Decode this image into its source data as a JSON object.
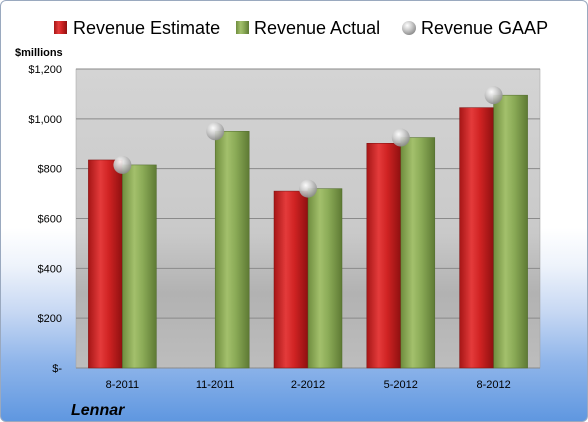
{
  "chart_data": {
    "type": "bar",
    "title": "",
    "ylabel": "$millions",
    "xlabel": "",
    "company": "Lennar",
    "categories": [
      "8-2011",
      "11-2011",
      "2-2012",
      "5-2012",
      "8-2012"
    ],
    "series": [
      {
        "name": "Revenue Estimate",
        "type": "bar",
        "color": "#d42525",
        "values": [
          835,
          null,
          710,
          902,
          1045
        ]
      },
      {
        "name": "Revenue Actual",
        "type": "bar",
        "color": "#8bab57",
        "values": [
          815,
          950,
          720,
          925,
          1095
        ]
      },
      {
        "name": "Revenue GAAP",
        "type": "marker",
        "color": "#b8b8b8",
        "values": [
          815,
          950,
          720,
          925,
          1095
        ]
      }
    ],
    "ylim": [
      0,
      1200
    ],
    "y_ticks": [
      0,
      200,
      400,
      600,
      800,
      1000,
      1200
    ],
    "y_tick_labels": [
      "$-",
      "$200",
      "$400",
      "$600",
      "$800",
      "$1,000",
      "$1,200"
    ],
    "grid": true,
    "legend_position": "top"
  }
}
